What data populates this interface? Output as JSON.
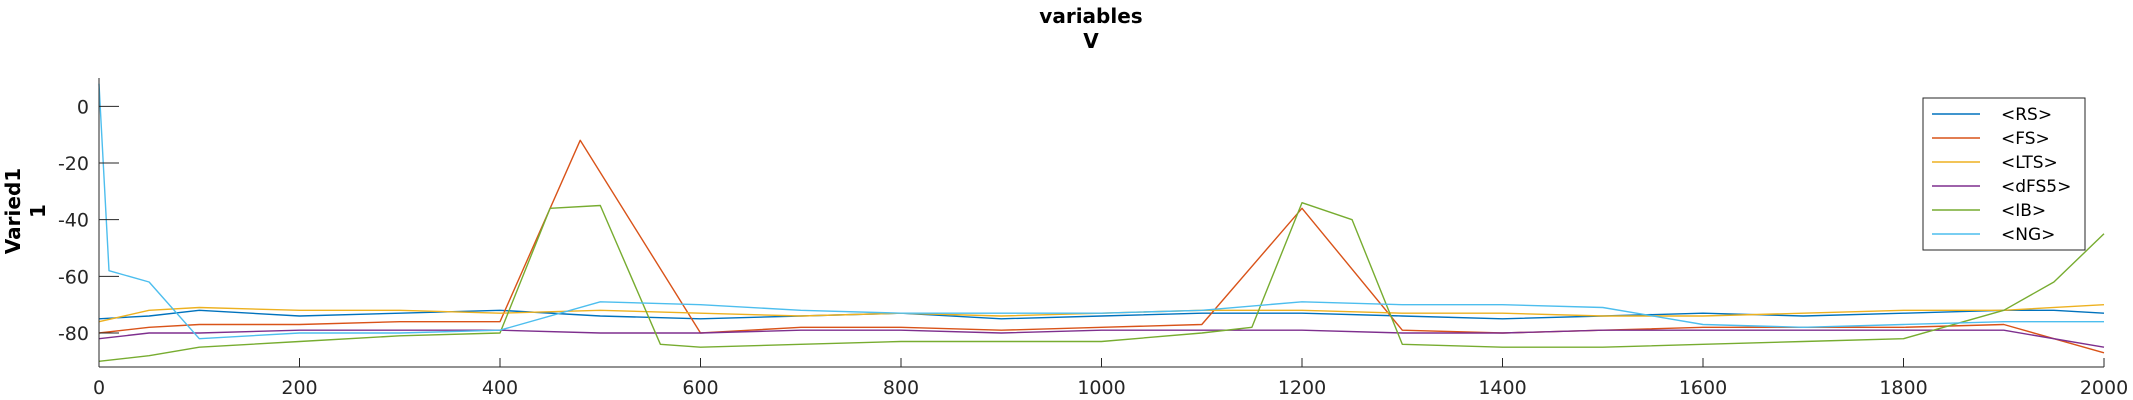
{
  "chart_data": {
    "type": "line",
    "title": [
      "variables",
      "V"
    ],
    "ylabel": [
      "Varied1",
      "1"
    ],
    "xlabel": "",
    "xlim": [
      0,
      2000
    ],
    "ylim": [
      -92,
      10
    ],
    "x_ticks": [
      0,
      200,
      400,
      600,
      800,
      1000,
      1200,
      1400,
      1600,
      1800,
      2000
    ],
    "y_ticks": [
      0,
      -20,
      -40,
      -60,
      -80
    ],
    "grid": false,
    "legend_position": "top-right",
    "series": [
      {
        "name": "<RS>",
        "color": "#0072BD",
        "x": [
          0,
          50,
          100,
          200,
          300,
          400,
          500,
          600,
          700,
          800,
          900,
          1000,
          1100,
          1200,
          1300,
          1400,
          1500,
          1600,
          1700,
          1800,
          1900,
          1950,
          2000
        ],
        "y": [
          -75,
          -74,
          -72,
          -74,
          -73,
          -72,
          -74,
          -75,
          -74,
          -73,
          -75,
          -74,
          -73,
          -73,
          -74,
          -75,
          -74,
          -73,
          -74,
          -73,
          -72,
          -72,
          -73
        ]
      },
      {
        "name": "<FS>",
        "color": "#D95319",
        "x": [
          0,
          50,
          100,
          200,
          300,
          400,
          480,
          600,
          700,
          800,
          900,
          1000,
          1100,
          1200,
          1300,
          1400,
          1500,
          1600,
          1700,
          1800,
          1900,
          2000
        ],
        "y": [
          -80,
          -78,
          -77,
          -77,
          -76,
          -76,
          -12,
          -80,
          -78,
          -78,
          -79,
          -78,
          -77,
          -36,
          -79,
          -80,
          -79,
          -78,
          -78,
          -78,
          -77,
          -87
        ]
      },
      {
        "name": "<LTS>",
        "color": "#EDB120",
        "x": [
          0,
          50,
          100,
          200,
          300,
          400,
          500,
          600,
          700,
          800,
          900,
          1000,
          1100,
          1200,
          1300,
          1400,
          1500,
          1600,
          1700,
          1800,
          1900,
          2000
        ],
        "y": [
          -76,
          -72,
          -71,
          -72,
          -72,
          -73,
          -72,
          -73,
          -74,
          -73,
          -74,
          -73,
          -72,
          -72,
          -73,
          -73,
          -74,
          -74,
          -73,
          -72,
          -72,
          -70
        ]
      },
      {
        "name": "<dFS5>",
        "color": "#7E2F8E",
        "x": [
          0,
          50,
          100,
          200,
          300,
          400,
          500,
          600,
          700,
          800,
          900,
          1000,
          1100,
          1200,
          1300,
          1400,
          1500,
          1600,
          1700,
          1800,
          1900,
          2000
        ],
        "y": [
          -82,
          -80,
          -80,
          -79,
          -79,
          -79,
          -80,
          -80,
          -79,
          -79,
          -80,
          -79,
          -79,
          -79,
          -80,
          -80,
          -79,
          -79,
          -79,
          -79,
          -79,
          -85
        ]
      },
      {
        "name": "<IB>",
        "color": "#77AC30",
        "x": [
          0,
          50,
          100,
          200,
          300,
          400,
          450,
          500,
          560,
          600,
          700,
          800,
          900,
          1000,
          1100,
          1150,
          1200,
          1250,
          1300,
          1400,
          1500,
          1600,
          1700,
          1800,
          1900,
          1950,
          2000
        ],
        "y": [
          -90,
          -88,
          -85,
          -83,
          -81,
          -80,
          -36,
          -35,
          -84,
          -85,
          -84,
          -83,
          -83,
          -83,
          -80,
          -78,
          -34,
          -40,
          -84,
          -85,
          -85,
          -84,
          -83,
          -82,
          -72,
          -62,
          -45
        ]
      },
      {
        "name": "<NG>",
        "color": "#4DBEEE",
        "x": [
          0,
          10,
          50,
          100,
          200,
          300,
          400,
          500,
          600,
          700,
          800,
          900,
          1000,
          1100,
          1200,
          1300,
          1400,
          1500,
          1600,
          1700,
          1800,
          1900,
          2000
        ],
        "y": [
          8,
          -58,
          -62,
          -82,
          -80,
          -80,
          -79,
          -69,
          -70,
          -72,
          -73,
          -73,
          -73,
          -72,
          -69,
          -70,
          -70,
          -71,
          -77,
          -78,
          -77,
          -76,
          -76
        ]
      }
    ]
  }
}
